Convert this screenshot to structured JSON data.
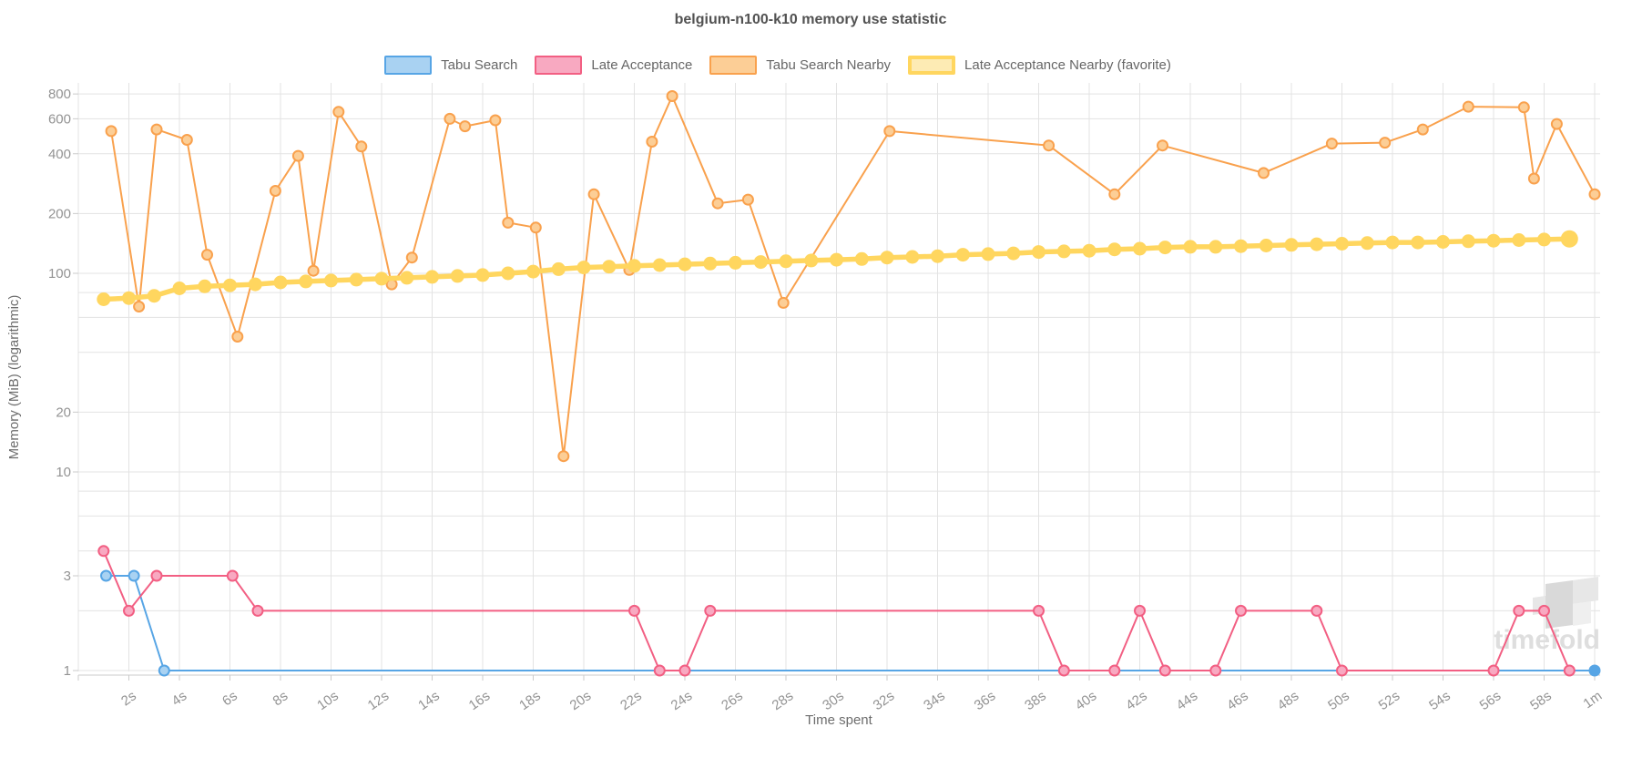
{
  "chart_data": {
    "type": "line",
    "title": "belgium-n100-k10 memory use statistic",
    "xlabel": "Time spent",
    "ylabel": "Memory (MiB) (logarithmic)",
    "watermark": "timefold",
    "x_range_seconds": [
      0,
      60
    ],
    "y_scale": "log",
    "y_range": [
      1,
      900
    ],
    "grid": true,
    "legend_position": "top",
    "y_gridline_values": [
      1,
      2,
      3,
      4,
      6,
      8,
      10,
      20,
      40,
      60,
      80,
      100,
      200,
      400,
      600,
      800
    ],
    "y_tick_labels": [
      {
        "v": 800,
        "label": "800"
      },
      {
        "v": 600,
        "label": "600"
      },
      {
        "v": 400,
        "label": "400"
      },
      {
        "v": 200,
        "label": "200"
      },
      {
        "v": 100,
        "label": "100"
      },
      {
        "v": 20,
        "label": "20"
      },
      {
        "v": 10,
        "label": "10"
      },
      {
        "v": 3,
        "label": "3"
      },
      {
        "v": 1,
        "label": "1"
      }
    ],
    "x_ticks": [
      {
        "t": 2,
        "label": "2s"
      },
      {
        "t": 4,
        "label": "4s"
      },
      {
        "t": 6,
        "label": "6s"
      },
      {
        "t": 8,
        "label": "8s"
      },
      {
        "t": 10,
        "label": "10s"
      },
      {
        "t": 12,
        "label": "12s"
      },
      {
        "t": 14,
        "label": "14s"
      },
      {
        "t": 16,
        "label": "16s"
      },
      {
        "t": 18,
        "label": "18s"
      },
      {
        "t": 20,
        "label": "20s"
      },
      {
        "t": 22,
        "label": "22s"
      },
      {
        "t": 24,
        "label": "24s"
      },
      {
        "t": 26,
        "label": "26s"
      },
      {
        "t": 28,
        "label": "28s"
      },
      {
        "t": 30,
        "label": "30s"
      },
      {
        "t": 32,
        "label": "32s"
      },
      {
        "t": 34,
        "label": "34s"
      },
      {
        "t": 36,
        "label": "36s"
      },
      {
        "t": 38,
        "label": "38s"
      },
      {
        "t": 40,
        "label": "40s"
      },
      {
        "t": 42,
        "label": "42s"
      },
      {
        "t": 44,
        "label": "44s"
      },
      {
        "t": 46,
        "label": "46s"
      },
      {
        "t": 48,
        "label": "48s"
      },
      {
        "t": 50,
        "label": "50s"
      },
      {
        "t": 52,
        "label": "52s"
      },
      {
        "t": 54,
        "label": "54s"
      },
      {
        "t": 56,
        "label": "56s"
      },
      {
        "t": 58,
        "label": "58s"
      },
      {
        "t": 60,
        "label": "1m"
      }
    ],
    "series": [
      {
        "name": "Tabu Search",
        "color": "#57a5e5",
        "marker_fill": "#a9d2f2",
        "line_width": 2,
        "marker_radius": 5.5,
        "points": [
          [
            1.1,
            3
          ],
          [
            2.2,
            3
          ],
          [
            3.4,
            1
          ],
          [
            60,
            1
          ]
        ]
      },
      {
        "name": "Late Acceptance",
        "color": "#f25f83",
        "marker_fill": "#f8a9c1",
        "line_width": 2,
        "marker_radius": 5.5,
        "points": [
          [
            1,
            4
          ],
          [
            2,
            2
          ],
          [
            3.1,
            3
          ],
          [
            6.1,
            3
          ],
          [
            7.1,
            2
          ],
          [
            22,
            2
          ],
          [
            23,
            1
          ],
          [
            24,
            1
          ],
          [
            25,
            2
          ],
          [
            38,
            2
          ],
          [
            39,
            1
          ],
          [
            41,
            1
          ],
          [
            42,
            2
          ],
          [
            43,
            1
          ],
          [
            45,
            1
          ],
          [
            46,
            2
          ],
          [
            49,
            2
          ],
          [
            50,
            1
          ],
          [
            56,
            1
          ],
          [
            57,
            2
          ],
          [
            58,
            2
          ],
          [
            59,
            1
          ]
        ]
      },
      {
        "name": "Tabu Search Nearby",
        "color": "#f9a14d",
        "marker_fill": "#fcce96",
        "line_width": 2,
        "marker_radius": 5.5,
        "points": [
          [
            1.3,
            520
          ],
          [
            2.4,
            68
          ],
          [
            3.1,
            530
          ],
          [
            4.3,
            470
          ],
          [
            5.1,
            124
          ],
          [
            6.3,
            48
          ],
          [
            7.8,
            260
          ],
          [
            8.7,
            390
          ],
          [
            9.3,
            103
          ],
          [
            10.3,
            650
          ],
          [
            11.2,
            435
          ],
          [
            12.4,
            88
          ],
          [
            13.2,
            120
          ],
          [
            14.7,
            600
          ],
          [
            15.3,
            550
          ],
          [
            16.5,
            590
          ],
          [
            17,
            180
          ],
          [
            18.1,
            170
          ],
          [
            19.2,
            12
          ],
          [
            20.4,
            250
          ],
          [
            21.8,
            104
          ],
          [
            22.7,
            460
          ],
          [
            23.5,
            780
          ],
          [
            25.3,
            225
          ],
          [
            26.5,
            235
          ],
          [
            27.9,
            71
          ],
          [
            32.1,
            520
          ],
          [
            38.4,
            440
          ],
          [
            41,
            250
          ],
          [
            42.9,
            440
          ],
          [
            46.9,
            320
          ],
          [
            49.6,
            450
          ],
          [
            51.7,
            455
          ],
          [
            53.2,
            530
          ],
          [
            55,
            690
          ],
          [
            57.2,
            685
          ],
          [
            57.6,
            300
          ],
          [
            58.5,
            565
          ],
          [
            60,
            250
          ]
        ]
      },
      {
        "name": "Late Acceptance Nearby (favorite)",
        "color": "#ffd65f",
        "marker_fill": "#ffd65f",
        "line_width": 5.5,
        "marker_radius": 6.5,
        "points": [
          [
            1,
            74
          ],
          [
            2,
            75
          ],
          [
            3,
            77
          ],
          [
            4,
            84
          ],
          [
            5,
            86
          ],
          [
            6,
            87
          ],
          [
            7,
            88
          ],
          [
            8,
            90
          ],
          [
            9,
            91
          ],
          [
            10,
            92
          ],
          [
            11,
            93
          ],
          [
            12,
            94
          ],
          [
            13,
            95
          ],
          [
            14,
            96
          ],
          [
            15,
            97
          ],
          [
            16,
            98
          ],
          [
            17,
            100
          ],
          [
            18,
            102
          ],
          [
            19,
            105
          ],
          [
            20,
            107
          ],
          [
            21,
            108
          ],
          [
            22,
            109
          ],
          [
            23,
            110
          ],
          [
            24,
            111
          ],
          [
            25,
            112
          ],
          [
            26,
            113
          ],
          [
            27,
            114
          ],
          [
            28,
            115
          ],
          [
            29,
            116
          ],
          [
            30,
            117
          ],
          [
            31,
            118
          ],
          [
            32,
            120
          ],
          [
            33,
            121
          ],
          [
            34,
            122
          ],
          [
            35,
            124
          ],
          [
            36,
            125
          ],
          [
            37,
            126
          ],
          [
            38,
            128
          ],
          [
            39,
            129
          ],
          [
            40,
            130
          ],
          [
            41,
            132
          ],
          [
            42,
            133
          ],
          [
            43,
            135
          ],
          [
            44,
            136
          ],
          [
            45,
            136
          ],
          [
            46,
            137
          ],
          [
            47,
            138
          ],
          [
            48,
            139
          ],
          [
            49,
            140
          ],
          [
            50,
            141
          ],
          [
            51,
            142
          ],
          [
            52,
            143
          ],
          [
            53,
            143
          ],
          [
            54,
            144
          ],
          [
            55,
            145
          ],
          [
            56,
            146
          ],
          [
            57,
            147
          ],
          [
            58,
            148
          ],
          [
            59,
            149
          ]
        ]
      }
    ]
  }
}
